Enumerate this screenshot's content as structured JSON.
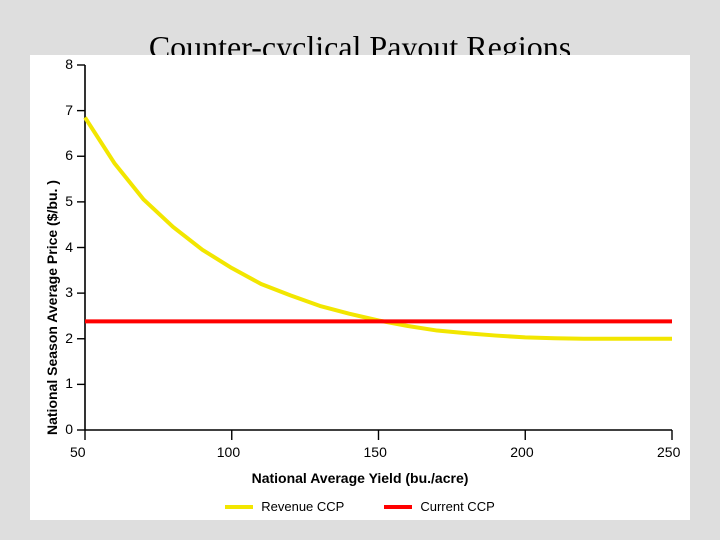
{
  "title": "Counter-cyclical Payout Regions",
  "chart": {
    "type": "line",
    "background_color": "#ffffff",
    "slide_background_color": "#dedede",
    "xlabel": "National Average Yield (bu./acre)",
    "ylabel": "National Season Average Price ($/bu. )",
    "label_fontsize": 14,
    "label_fontweight": 700,
    "tick_fontsize": 14,
    "xlim": [
      50,
      250
    ],
    "ylim": [
      0,
      8
    ],
    "xticks": [
      50,
      100,
      150,
      200,
      250
    ],
    "yticks": [
      0,
      1,
      2,
      3,
      4,
      5,
      6,
      7,
      8
    ],
    "xtick_major_len": 10,
    "ytick_major_len": 8,
    "grid": false,
    "axis_color": "#000000",
    "series": [
      {
        "name": "Revenue CCP",
        "color": "#f2e600",
        "line_width": 4,
        "x": [
          50,
          60,
          70,
          80,
          90,
          100,
          110,
          120,
          130,
          140,
          150,
          160,
          170,
          180,
          190,
          200,
          210,
          220,
          230,
          240,
          250
        ],
        "y": [
          6.85,
          5.85,
          5.05,
          4.45,
          3.95,
          3.55,
          3.2,
          2.95,
          2.72,
          2.55,
          2.4,
          2.28,
          2.18,
          2.12,
          2.07,
          2.03,
          2.01,
          2.0,
          2.0,
          2.0,
          2.0
        ]
      },
      {
        "name": "Current CCP",
        "color": "#ff0000",
        "line_width": 4,
        "x": [
          50,
          250
        ],
        "y": [
          2.38,
          2.38
        ]
      }
    ],
    "legend": {
      "position": "bottom-center",
      "items": [
        {
          "label": "Revenue CCP",
          "color": "#f2e600"
        },
        {
          "label": "Current CCP",
          "color": "#ff0000"
        }
      ]
    }
  }
}
